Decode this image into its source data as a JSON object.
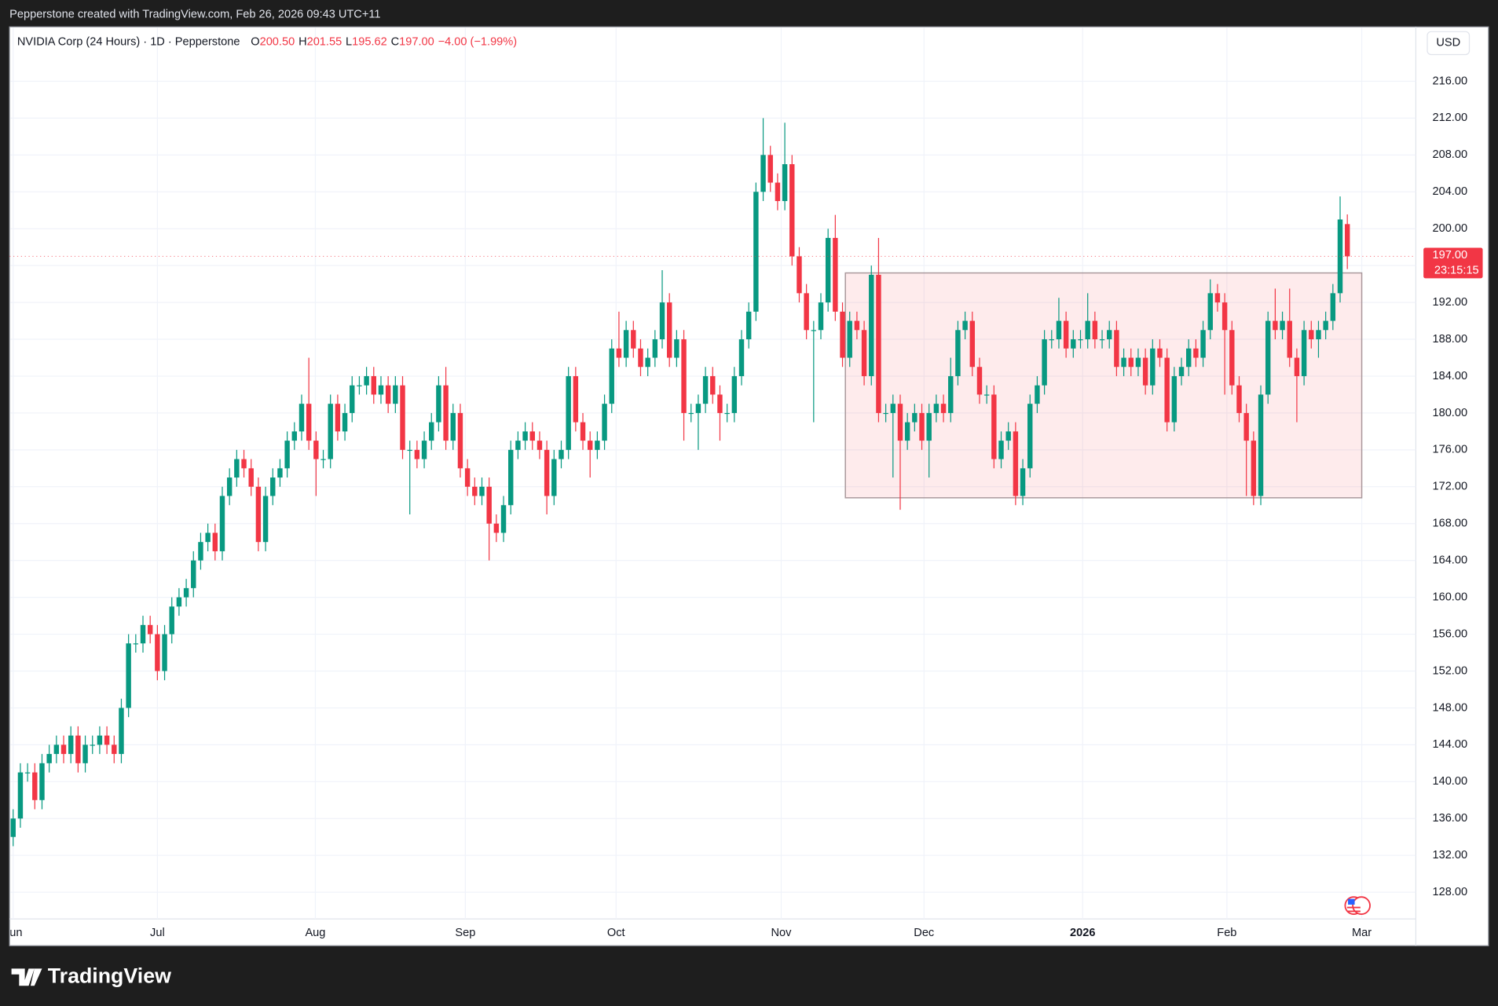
{
  "header": {
    "credit": "Pepperstone created with TradingView.com, Feb 26, 2026 09:43 UTC+11"
  },
  "footer": {
    "brand": "TradingView"
  },
  "chart_data": {
    "type": "candlestick",
    "title": "NVIDIA Corp (24 Hours) · 1D · Pepperstone",
    "legend_values": [
      {
        "key": "O",
        "text": "200.50"
      },
      {
        "key": "H",
        "text": "201.55"
      },
      {
        "key": "L",
        "text": "195.62"
      },
      {
        "key": "C",
        "text": "197.00"
      }
    ],
    "change_text": "−4.00 (−1.99%)",
    "currency": "USD",
    "last_price": {
      "value": 197,
      "label": "197.00"
    },
    "countdown": "23:15:15",
    "up_color": "#089981",
    "down_color": "#f23645",
    "xlim": [
      -0.5,
      194.5
    ],
    "ylim": [
      125.1,
      221.9
    ],
    "xticks": [
      {
        "value": 0,
        "label": "Jun"
      },
      {
        "value": 20,
        "label": "Jul"
      },
      {
        "value": 41.9,
        "label": "Aug"
      },
      {
        "value": 62.7,
        "label": "Sep"
      },
      {
        "value": 83.6,
        "label": "Oct"
      },
      {
        "value": 106.5,
        "label": "Nov"
      },
      {
        "value": 126.3,
        "label": "Dec"
      },
      {
        "value": 148.3,
        "label": "2026"
      },
      {
        "value": 168.3,
        "label": "Feb"
      },
      {
        "value": 187,
        "label": "Mar"
      }
    ],
    "yticks": [
      {
        "value": 128,
        "label": "128.00"
      },
      {
        "value": 132,
        "label": "132.00"
      },
      {
        "value": 136,
        "label": "136.00"
      },
      {
        "value": 140,
        "label": "140.00"
      },
      {
        "value": 144,
        "label": "144.00"
      },
      {
        "value": 148,
        "label": "148.00"
      },
      {
        "value": 152,
        "label": "152.00"
      },
      {
        "value": 156,
        "label": "156.00"
      },
      {
        "value": 160,
        "label": "160.00"
      },
      {
        "value": 164,
        "label": "164.00"
      },
      {
        "value": 168,
        "label": "168.00"
      },
      {
        "value": 172,
        "label": "172.00"
      },
      {
        "value": 176,
        "label": "176.00"
      },
      {
        "value": 180,
        "label": "180.00"
      },
      {
        "value": 184,
        "label": "184.00"
      },
      {
        "value": 188,
        "label": "188.00"
      },
      {
        "value": 192,
        "label": "192.00"
      },
      {
        "value": 196,
        "label": "196.00"
      },
      {
        "value": 200,
        "label": "200.00"
      },
      {
        "value": 204,
        "label": "204.00"
      },
      {
        "value": 208,
        "label": "208.00"
      },
      {
        "value": 212,
        "label": "212.00"
      },
      {
        "value": 216,
        "label": "216.00"
      }
    ],
    "grid": true,
    "shapes": [
      {
        "kind": "rect",
        "x0": 115.4,
        "x1": 187,
        "y0": 170.8,
        "y1": 195.2,
        "color": "#f23645"
      }
    ],
    "open": [
      134,
      136,
      141,
      141,
      138,
      142,
      143,
      144,
      143,
      145,
      142,
      144,
      144,
      145,
      144,
      143,
      148,
      155,
      155,
      157,
      156,
      152,
      156,
      159,
      160,
      161,
      164,
      166,
      167,
      165,
      171,
      173,
      175,
      174,
      172,
      166,
      171,
      173,
      174,
      177,
      178,
      181,
      177,
      175,
      175,
      181,
      178,
      180,
      183,
      183,
      184,
      182,
      183,
      181,
      183,
      176,
      176,
      175,
      177,
      179,
      183,
      177,
      180,
      174,
      172,
      171,
      172,
      168,
      167,
      170,
      176,
      177,
      178,
      177,
      176,
      171,
      175,
      176,
      184,
      179,
      177,
      176,
      177,
      181,
      187,
      186,
      189,
      187,
      185,
      186,
      188,
      192,
      186,
      188,
      180,
      180,
      181,
      184,
      182,
      180,
      180,
      184,
      188,
      191,
      204,
      208,
      205,
      203,
      207,
      197,
      193,
      189,
      189,
      192,
      199,
      191,
      186,
      190,
      189,
      184,
      195,
      180,
      180,
      181,
      177,
      179,
      180,
      177,
      180,
      181,
      180,
      184,
      189,
      190,
      185,
      182,
      182,
      175,
      177,
      178,
      171,
      174,
      181,
      183,
      188,
      188,
      190,
      187,
      188,
      188,
      190,
      188,
      188,
      189,
      185,
      186,
      185,
      186,
      183,
      187,
      186,
      179,
      184,
      185,
      187,
      186,
      189,
      193,
      192,
      189,
      183,
      180,
      177,
      171,
      182,
      190,
      189,
      190,
      186,
      184,
      189,
      188,
      189,
      190,
      193,
      200.5
    ],
    "high": [
      137,
      142,
      142,
      142,
      143,
      144,
      145,
      145,
      146,
      146,
      145,
      145,
      146,
      146,
      145,
      149,
      156,
      156,
      158,
      158,
      157,
      157,
      160,
      161,
      162,
      165,
      167,
      168,
      168,
      172,
      174,
      176,
      176,
      175,
      173,
      172,
      174,
      175,
      178,
      179,
      182,
      186,
      178,
      176,
      182,
      182,
      181,
      184,
      184,
      185,
      185,
      184,
      184,
      184,
      184,
      177,
      177,
      178,
      180,
      184,
      185,
      181,
      181,
      175,
      173,
      173,
      173,
      169,
      171,
      177,
      178,
      179,
      179,
      178,
      177,
      176,
      177,
      185,
      185,
      180,
      178,
      178,
      182,
      188,
      191,
      190,
      190,
      188,
      187,
      189,
      195.5,
      193,
      189,
      189,
      181,
      182,
      185,
      185,
      183,
      181,
      185,
      189,
      192,
      205,
      212,
      209,
      206,
      211.5,
      208,
      198,
      194,
      190,
      193,
      200,
      201.5,
      192,
      191,
      191,
      190,
      196,
      199,
      181,
      182,
      182,
      180,
      181,
      181,
      181,
      182,
      182,
      186,
      190,
      191,
      191,
      186,
      183,
      183,
      178,
      179,
      179,
      175,
      182,
      184,
      189,
      189,
      192.5,
      191,
      189,
      189,
      193,
      191,
      189,
      190,
      190,
      187,
      187,
      187,
      187,
      188,
      188,
      187,
      185,
      186,
      188,
      188,
      190,
      194.5,
      194,
      193,
      190,
      184,
      181,
      178,
      183,
      191,
      193.5,
      191,
      193.5,
      187,
      190,
      190,
      190,
      191,
      194,
      203.5,
      201.55
    ],
    "low": [
      133,
      135,
      140,
      137,
      137,
      141,
      142,
      142,
      142,
      141,
      141,
      143,
      143,
      143,
      142,
      142,
      147,
      154,
      154,
      155,
      151,
      151,
      155,
      158,
      159,
      160,
      163,
      165,
      164,
      164,
      170,
      172,
      173,
      171,
      165,
      165,
      170,
      172,
      173,
      176,
      177,
      176,
      171,
      174,
      174,
      177,
      177,
      179,
      182,
      182,
      181,
      181,
      180,
      180,
      175,
      169,
      174,
      174,
      176,
      178,
      176,
      176,
      173,
      171,
      170,
      170,
      164,
      166,
      166,
      169,
      175,
      176,
      176,
      175,
      169,
      170,
      174,
      175,
      178,
      176,
      173,
      175,
      176,
      180,
      185,
      185,
      186,
      184,
      184,
      185,
      187,
      185,
      185,
      177,
      179,
      176,
      180,
      181,
      177,
      179,
      179,
      183,
      187,
      190,
      203,
      204,
      202,
      202,
      196,
      192,
      188,
      179,
      188,
      191,
      190,
      185,
      185,
      188,
      183,
      183,
      179,
      179,
      173,
      169.5,
      176,
      178,
      176,
      173,
      179,
      179,
      179,
      183,
      188,
      184,
      181,
      181,
      174,
      174,
      176,
      170,
      170,
      173,
      180,
      182,
      187,
      187,
      186,
      186,
      187,
      187,
      187,
      187,
      187,
      184,
      184,
      184,
      184,
      182,
      182,
      185,
      178,
      178,
      183,
      184,
      185,
      185,
      188,
      191,
      182,
      182,
      179,
      171,
      170,
      170,
      181,
      188,
      188,
      185,
      179,
      183,
      187,
      186,
      188,
      189,
      192,
      195.62
    ],
    "close": [
      136,
      141,
      141,
      138,
      142,
      143,
      144,
      143,
      145,
      142,
      144,
      144,
      145,
      144,
      143,
      148,
      155,
      155,
      157,
      156,
      152,
      156,
      159,
      160,
      161,
      164,
      166,
      167,
      165,
      171,
      173,
      175,
      174,
      172,
      166,
      171,
      173,
      174,
      177,
      178,
      181,
      177,
      175,
      175,
      181,
      178,
      180,
      183,
      183,
      184,
      182,
      183,
      181,
      183,
      176,
      176,
      175,
      177,
      179,
      183,
      177,
      180,
      174,
      172,
      171,
      172,
      168,
      167,
      170,
      176,
      177,
      178,
      177,
      176,
      171,
      175,
      176,
      184,
      179,
      177,
      176,
      177,
      181,
      187,
      186,
      189,
      187,
      185,
      186,
      188,
      192,
      186,
      188,
      180,
      180,
      181,
      184,
      182,
      180,
      180,
      184,
      188,
      191,
      204,
      208,
      205,
      203,
      207,
      197,
      193,
      189,
      189,
      192,
      199,
      191,
      186,
      190,
      189,
      184,
      195,
      180,
      180,
      181,
      177,
      179,
      180,
      177,
      180,
      181,
      180,
      184,
      189,
      190,
      185,
      182,
      182,
      175,
      177,
      178,
      171,
      174,
      181,
      183,
      188,
      188,
      190,
      187,
      188,
      188,
      190,
      188,
      188,
      189,
      185,
      186,
      185,
      186,
      183,
      187,
      186,
      179,
      184,
      185,
      187,
      186,
      189,
      193,
      192,
      189,
      183,
      180,
      177,
      171,
      182,
      190,
      189,
      190,
      186,
      184,
      189,
      188,
      189,
      190,
      193,
      201,
      197
    ]
  }
}
